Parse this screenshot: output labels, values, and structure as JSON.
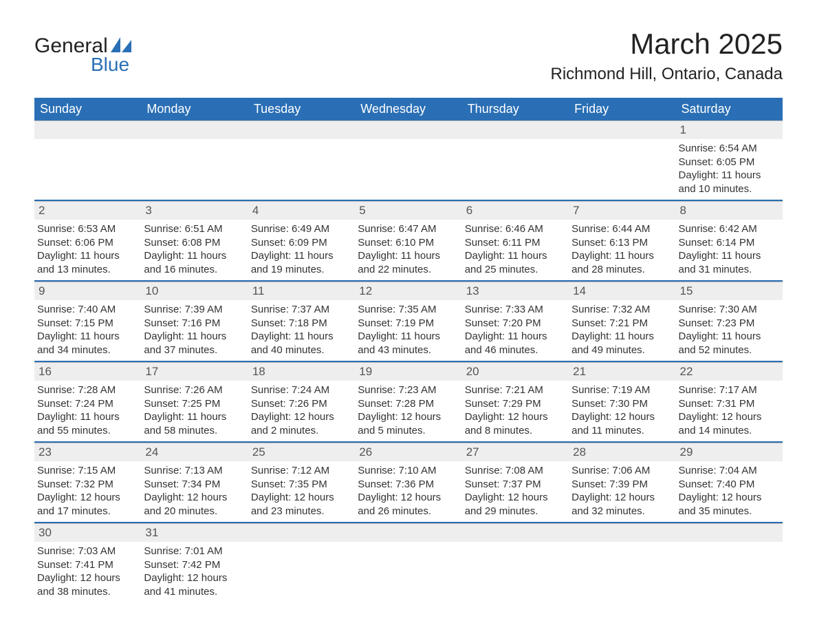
{
  "brand": {
    "name_part1": "General",
    "name_part2": "Blue",
    "icon_color": "#2a6fb5",
    "text_primary": "#222222",
    "text_accent": "#2a6fb5"
  },
  "title": "March 2025",
  "location": "Richmond Hill, Ontario, Canada",
  "colors": {
    "header_bg": "#2a6fb5",
    "header_text": "#ffffff",
    "daynum_bg": "#eeeeee",
    "daynum_text": "#555555",
    "border": "#2a6fb5",
    "body_text": "#333333",
    "page_bg": "#ffffff"
  },
  "day_names": [
    "Sunday",
    "Monday",
    "Tuesday",
    "Wednesday",
    "Thursday",
    "Friday",
    "Saturday"
  ],
  "weeks": [
    [
      null,
      null,
      null,
      null,
      null,
      null,
      {
        "n": "1",
        "sunrise": "Sunrise: 6:54 AM",
        "sunset": "Sunset: 6:05 PM",
        "day1": "Daylight: 11 hours",
        "day2": "and 10 minutes."
      }
    ],
    [
      {
        "n": "2",
        "sunrise": "Sunrise: 6:53 AM",
        "sunset": "Sunset: 6:06 PM",
        "day1": "Daylight: 11 hours",
        "day2": "and 13 minutes."
      },
      {
        "n": "3",
        "sunrise": "Sunrise: 6:51 AM",
        "sunset": "Sunset: 6:08 PM",
        "day1": "Daylight: 11 hours",
        "day2": "and 16 minutes."
      },
      {
        "n": "4",
        "sunrise": "Sunrise: 6:49 AM",
        "sunset": "Sunset: 6:09 PM",
        "day1": "Daylight: 11 hours",
        "day2": "and 19 minutes."
      },
      {
        "n": "5",
        "sunrise": "Sunrise: 6:47 AM",
        "sunset": "Sunset: 6:10 PM",
        "day1": "Daylight: 11 hours",
        "day2": "and 22 minutes."
      },
      {
        "n": "6",
        "sunrise": "Sunrise: 6:46 AM",
        "sunset": "Sunset: 6:11 PM",
        "day1": "Daylight: 11 hours",
        "day2": "and 25 minutes."
      },
      {
        "n": "7",
        "sunrise": "Sunrise: 6:44 AM",
        "sunset": "Sunset: 6:13 PM",
        "day1": "Daylight: 11 hours",
        "day2": "and 28 minutes."
      },
      {
        "n": "8",
        "sunrise": "Sunrise: 6:42 AM",
        "sunset": "Sunset: 6:14 PM",
        "day1": "Daylight: 11 hours",
        "day2": "and 31 minutes."
      }
    ],
    [
      {
        "n": "9",
        "sunrise": "Sunrise: 7:40 AM",
        "sunset": "Sunset: 7:15 PM",
        "day1": "Daylight: 11 hours",
        "day2": "and 34 minutes."
      },
      {
        "n": "10",
        "sunrise": "Sunrise: 7:39 AM",
        "sunset": "Sunset: 7:16 PM",
        "day1": "Daylight: 11 hours",
        "day2": "and 37 minutes."
      },
      {
        "n": "11",
        "sunrise": "Sunrise: 7:37 AM",
        "sunset": "Sunset: 7:18 PM",
        "day1": "Daylight: 11 hours",
        "day2": "and 40 minutes."
      },
      {
        "n": "12",
        "sunrise": "Sunrise: 7:35 AM",
        "sunset": "Sunset: 7:19 PM",
        "day1": "Daylight: 11 hours",
        "day2": "and 43 minutes."
      },
      {
        "n": "13",
        "sunrise": "Sunrise: 7:33 AM",
        "sunset": "Sunset: 7:20 PM",
        "day1": "Daylight: 11 hours",
        "day2": "and 46 minutes."
      },
      {
        "n": "14",
        "sunrise": "Sunrise: 7:32 AM",
        "sunset": "Sunset: 7:21 PM",
        "day1": "Daylight: 11 hours",
        "day2": "and 49 minutes."
      },
      {
        "n": "15",
        "sunrise": "Sunrise: 7:30 AM",
        "sunset": "Sunset: 7:23 PM",
        "day1": "Daylight: 11 hours",
        "day2": "and 52 minutes."
      }
    ],
    [
      {
        "n": "16",
        "sunrise": "Sunrise: 7:28 AM",
        "sunset": "Sunset: 7:24 PM",
        "day1": "Daylight: 11 hours",
        "day2": "and 55 minutes."
      },
      {
        "n": "17",
        "sunrise": "Sunrise: 7:26 AM",
        "sunset": "Sunset: 7:25 PM",
        "day1": "Daylight: 11 hours",
        "day2": "and 58 minutes."
      },
      {
        "n": "18",
        "sunrise": "Sunrise: 7:24 AM",
        "sunset": "Sunset: 7:26 PM",
        "day1": "Daylight: 12 hours",
        "day2": "and 2 minutes."
      },
      {
        "n": "19",
        "sunrise": "Sunrise: 7:23 AM",
        "sunset": "Sunset: 7:28 PM",
        "day1": "Daylight: 12 hours",
        "day2": "and 5 minutes."
      },
      {
        "n": "20",
        "sunrise": "Sunrise: 7:21 AM",
        "sunset": "Sunset: 7:29 PM",
        "day1": "Daylight: 12 hours",
        "day2": "and 8 minutes."
      },
      {
        "n": "21",
        "sunrise": "Sunrise: 7:19 AM",
        "sunset": "Sunset: 7:30 PM",
        "day1": "Daylight: 12 hours",
        "day2": "and 11 minutes."
      },
      {
        "n": "22",
        "sunrise": "Sunrise: 7:17 AM",
        "sunset": "Sunset: 7:31 PM",
        "day1": "Daylight: 12 hours",
        "day2": "and 14 minutes."
      }
    ],
    [
      {
        "n": "23",
        "sunrise": "Sunrise: 7:15 AM",
        "sunset": "Sunset: 7:32 PM",
        "day1": "Daylight: 12 hours",
        "day2": "and 17 minutes."
      },
      {
        "n": "24",
        "sunrise": "Sunrise: 7:13 AM",
        "sunset": "Sunset: 7:34 PM",
        "day1": "Daylight: 12 hours",
        "day2": "and 20 minutes."
      },
      {
        "n": "25",
        "sunrise": "Sunrise: 7:12 AM",
        "sunset": "Sunset: 7:35 PM",
        "day1": "Daylight: 12 hours",
        "day2": "and 23 minutes."
      },
      {
        "n": "26",
        "sunrise": "Sunrise: 7:10 AM",
        "sunset": "Sunset: 7:36 PM",
        "day1": "Daylight: 12 hours",
        "day2": "and 26 minutes."
      },
      {
        "n": "27",
        "sunrise": "Sunrise: 7:08 AM",
        "sunset": "Sunset: 7:37 PM",
        "day1": "Daylight: 12 hours",
        "day2": "and 29 minutes."
      },
      {
        "n": "28",
        "sunrise": "Sunrise: 7:06 AM",
        "sunset": "Sunset: 7:39 PM",
        "day1": "Daylight: 12 hours",
        "day2": "and 32 minutes."
      },
      {
        "n": "29",
        "sunrise": "Sunrise: 7:04 AM",
        "sunset": "Sunset: 7:40 PM",
        "day1": "Daylight: 12 hours",
        "day2": "and 35 minutes."
      }
    ],
    [
      {
        "n": "30",
        "sunrise": "Sunrise: 7:03 AM",
        "sunset": "Sunset: 7:41 PM",
        "day1": "Daylight: 12 hours",
        "day2": "and 38 minutes."
      },
      {
        "n": "31",
        "sunrise": "Sunrise: 7:01 AM",
        "sunset": "Sunset: 7:42 PM",
        "day1": "Daylight: 12 hours",
        "day2": "and 41 minutes."
      },
      null,
      null,
      null,
      null,
      null
    ]
  ]
}
